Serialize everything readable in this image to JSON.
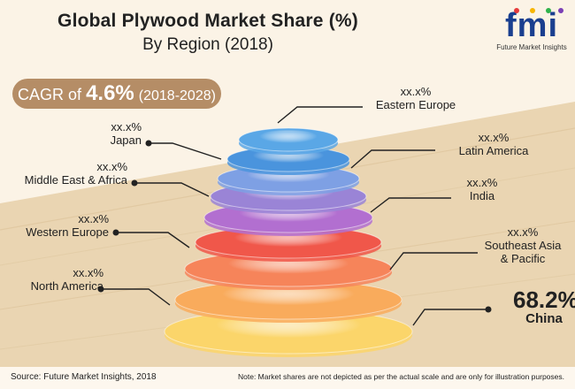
{
  "title": "Global Plywood Market Share (%)",
  "subtitle": "By Region (2018)",
  "logo": {
    "mark": "fmi",
    "sub": "Future Market Insights"
  },
  "cagr": {
    "prefix": "CAGR of ",
    "value": "4.6%",
    "period": "(2018-2028)"
  },
  "footer": {
    "source": "Source: Future Market Insights, 2018",
    "note": "Note: Market shares are not depicted as per the actual scale and are only for illustration purposes."
  },
  "colors": {
    "background": "#fbf3e6",
    "wood": "#e8d2ad",
    "cagr_badge": "#b58d66",
    "logo_blue": "#1a3f8f"
  },
  "chart_data": {
    "type": "stacked-disc",
    "title": "Global Plywood Market Share (%)",
    "subtitle": "By Region (2018)",
    "series": [
      {
        "name": "Eastern Europe",
        "value_label": "xx.x%",
        "color": "#5aa7e6",
        "side": "right"
      },
      {
        "name": "Japan",
        "value_label": "xx.x%",
        "color": "#4a94dd",
        "side": "left"
      },
      {
        "name": "Latin America",
        "value_label": "xx.x%",
        "color": "#7ea0e4",
        "side": "right"
      },
      {
        "name": "Middle East & Africa",
        "value_label": "xx.x%",
        "color": "#9a84d6",
        "side": "left"
      },
      {
        "name": "India",
        "value_label": "xx.x%",
        "color": "#b26fd0",
        "side": "right"
      },
      {
        "name": "Western Europe",
        "value_label": "xx.x%",
        "color": "#f0574a",
        "side": "left"
      },
      {
        "name": "Southeast Asia & Pacific",
        "value_label": "xx.x%",
        "color": "#f6845a",
        "side": "right"
      },
      {
        "name": "North America",
        "value_label": "xx.x%",
        "color": "#f9ab5c",
        "side": "left"
      },
      {
        "name": "China",
        "value_label": "68.2%",
        "value": 68.2,
        "color": "#fbd56a",
        "side": "right"
      }
    ]
  }
}
